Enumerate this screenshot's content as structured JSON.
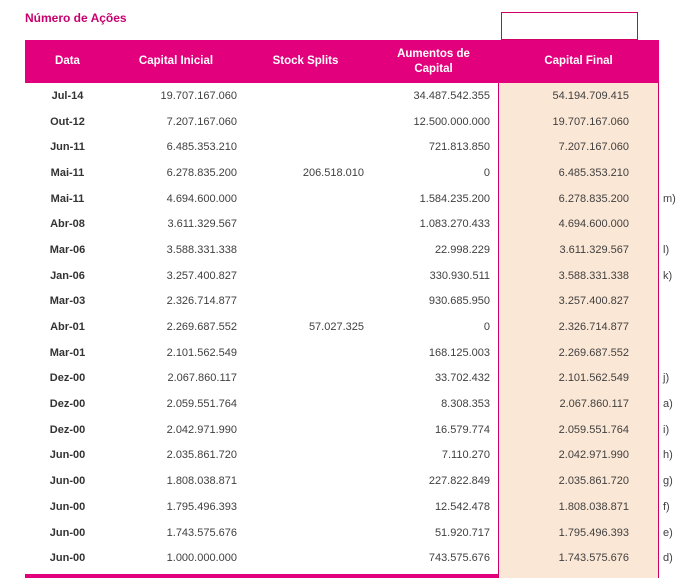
{
  "page": {
    "title_label": "Número de Ações"
  },
  "colors": {
    "magenta": "#E3007C",
    "magenta_dark": "#CE0063",
    "peach": "#FBE7D5",
    "title": "#C8006E",
    "text": "#404040",
    "date_text": "#333333"
  },
  "top_box": {
    "value": ""
  },
  "table": {
    "headers": {
      "data": "Data",
      "capital_inicial": "Capital Inicial",
      "stock_splits": "Stock Splits",
      "aumentos_capital": "Aumentos de Capital",
      "capital_final": "Capital Final"
    },
    "rows": [
      {
        "data": "Jul-14",
        "capital_inicial": "19.707.167.060",
        "stock_splits": "",
        "aumentos_capital": "34.487.542.355",
        "capital_final": "54.194.709.415",
        "note": ""
      },
      {
        "data": "Out-12",
        "capital_inicial": "7.207.167.060",
        "stock_splits": "",
        "aumentos_capital": "12.500.000.000",
        "capital_final": "19.707.167.060",
        "note": ""
      },
      {
        "data": "Jun-11",
        "capital_inicial": "6.485.353.210",
        "stock_splits": "",
        "aumentos_capital": "721.813.850",
        "capital_final": "7.207.167.060",
        "note": ""
      },
      {
        "data": "Mai-11",
        "capital_inicial": "6.278.835.200",
        "stock_splits": "206.518.010",
        "aumentos_capital": "0",
        "capital_final": "6.485.353.210",
        "note": ""
      },
      {
        "data": "Mai-11",
        "capital_inicial": "4.694.600.000",
        "stock_splits": "",
        "aumentos_capital": "1.584.235.200",
        "capital_final": "6.278.835.200",
        "note": "m)"
      },
      {
        "data": "Abr-08",
        "capital_inicial": "3.611.329.567",
        "stock_splits": "",
        "aumentos_capital": "1.083.270.433",
        "capital_final": "4.694.600.000",
        "note": ""
      },
      {
        "data": "Mar-06",
        "capital_inicial": "3.588.331.338",
        "stock_splits": "",
        "aumentos_capital": "22.998.229",
        "capital_final": "3.611.329.567",
        "note": "l)"
      },
      {
        "data": "Jan-06",
        "capital_inicial": "3.257.400.827",
        "stock_splits": "",
        "aumentos_capital": "330.930.511",
        "capital_final": "3.588.331.338",
        "note": "k)"
      },
      {
        "data": "Mar-03",
        "capital_inicial": "2.326.714.877",
        "stock_splits": "",
        "aumentos_capital": "930.685.950",
        "capital_final": "3.257.400.827",
        "note": ""
      },
      {
        "data": "Abr-01",
        "capital_inicial": "2.269.687.552",
        "stock_splits": "57.027.325",
        "aumentos_capital": "0",
        "capital_final": "2.326.714.877",
        "note": ""
      },
      {
        "data": "Mar-01",
        "capital_inicial": "2.101.562.549",
        "stock_splits": "",
        "aumentos_capital": "168.125.003",
        "capital_final": "2.269.687.552",
        "note": ""
      },
      {
        "data": "Dez-00",
        "capital_inicial": "2.067.860.117",
        "stock_splits": "",
        "aumentos_capital": "33.702.432",
        "capital_final": "2.101.562.549",
        "note": "j)"
      },
      {
        "data": "Dez-00",
        "capital_inicial": "2.059.551.764",
        "stock_splits": "",
        "aumentos_capital": "8.308.353",
        "capital_final": "2.067.860.117",
        "note": "a)"
      },
      {
        "data": "Dez-00",
        "capital_inicial": "2.042.971.990",
        "stock_splits": "",
        "aumentos_capital": "16.579.774",
        "capital_final": "2.059.551.764",
        "note": "i)"
      },
      {
        "data": "Jun-00",
        "capital_inicial": "2.035.861.720",
        "stock_splits": "",
        "aumentos_capital": "7.110.270",
        "capital_final": "2.042.971.990",
        "note": "h)"
      },
      {
        "data": "Jun-00",
        "capital_inicial": "1.808.038.871",
        "stock_splits": "",
        "aumentos_capital": "227.822.849",
        "capital_final": "2.035.861.720",
        "note": "g)"
      },
      {
        "data": "Jun-00",
        "capital_inicial": "1.795.496.393",
        "stock_splits": "",
        "aumentos_capital": "12.542.478",
        "capital_final": "1.808.038.871",
        "note": "f)"
      },
      {
        "data": "Jun-00",
        "capital_inicial": "1.743.575.676",
        "stock_splits": "",
        "aumentos_capital": "51.920.717",
        "capital_final": "1.795.496.393",
        "note": "e)"
      },
      {
        "data": "Jun-00",
        "capital_inicial": "1.000.000.000",
        "stock_splits": "",
        "aumentos_capital": "743.575.676",
        "capital_final": "1.743.575.676",
        "note": "d)"
      }
    ]
  }
}
